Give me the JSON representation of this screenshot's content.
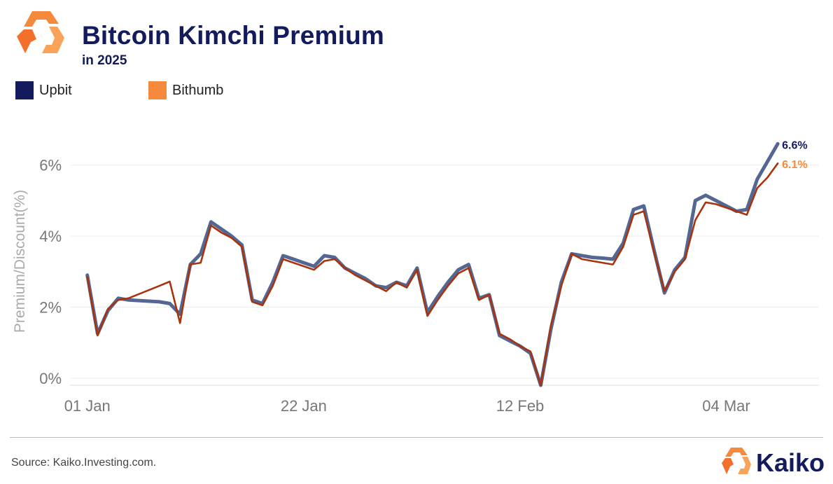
{
  "header": {
    "title": "Bitcoin Kimchi Premium",
    "subtitle": "in 2025"
  },
  "legend": [
    {
      "label": "Upbit",
      "color": "#131b5c"
    },
    {
      "label": "Bithumb",
      "color": "#f58a3c"
    }
  ],
  "footer": {
    "source": "Source: Kaiko.Investing.com.",
    "brand": "Kaiko"
  },
  "chart_data": {
    "type": "line",
    "title": "Bitcoin Kimchi Premium",
    "subtitle": "in 2025",
    "ylabel": "Premium/Discount(%)",
    "xlabel": "",
    "x_ticks": [
      "01 Jan",
      "22 Jan",
      "12 Feb",
      "04 Mar"
    ],
    "y_ticks": [
      "0%",
      "2%",
      "4%",
      "6%"
    ],
    "y_tick_values": [
      0,
      2,
      4,
      6
    ],
    "ylim": [
      -0.2,
      7.0
    ],
    "xlim": [
      "2024-12-31",
      "2025-03-13"
    ],
    "grid": "horizontal",
    "legend_position": "top-left",
    "series": [
      {
        "name": "Upbit",
        "color": "#4a5f8c",
        "end_label": "6.6%",
        "label_color": "#131b5c",
        "points": [
          [
            "2025-01-01",
            2.9
          ],
          [
            "2025-01-02",
            1.25
          ],
          [
            "2025-01-03",
            1.9
          ],
          [
            "2025-01-04",
            2.25
          ],
          [
            "2025-01-05",
            2.2
          ],
          [
            "2025-01-08",
            2.15
          ],
          [
            "2025-01-09",
            2.1
          ],
          [
            "2025-01-10",
            1.8
          ],
          [
            "2025-01-11",
            3.2
          ],
          [
            "2025-01-12",
            3.5
          ],
          [
            "2025-01-13",
            4.4
          ],
          [
            "2025-01-14",
            4.2
          ],
          [
            "2025-01-15",
            4.0
          ],
          [
            "2025-01-16",
            3.75
          ],
          [
            "2025-01-17",
            2.2
          ],
          [
            "2025-01-18",
            2.1
          ],
          [
            "2025-01-19",
            2.7
          ],
          [
            "2025-01-20",
            3.45
          ],
          [
            "2025-01-21",
            3.35
          ],
          [
            "2025-01-23",
            3.15
          ],
          [
            "2025-01-24",
            3.45
          ],
          [
            "2025-01-25",
            3.4
          ],
          [
            "2025-01-26",
            3.1
          ],
          [
            "2025-01-27",
            2.95
          ],
          [
            "2025-01-28",
            2.8
          ],
          [
            "2025-01-29",
            2.6
          ],
          [
            "2025-01-30",
            2.55
          ],
          [
            "2025-01-31",
            2.7
          ],
          [
            "2025-02-01",
            2.6
          ],
          [
            "2025-02-02",
            3.1
          ],
          [
            "2025-02-03",
            1.85
          ],
          [
            "2025-02-04",
            2.3
          ],
          [
            "2025-02-05",
            2.7
          ],
          [
            "2025-02-06",
            3.05
          ],
          [
            "2025-02-07",
            3.2
          ],
          [
            "2025-02-08",
            2.25
          ],
          [
            "2025-02-09",
            2.35
          ],
          [
            "2025-02-10",
            1.2
          ],
          [
            "2025-02-11",
            1.05
          ],
          [
            "2025-02-12",
            0.9
          ],
          [
            "2025-02-13",
            0.7
          ],
          [
            "2025-02-14",
            -0.2
          ],
          [
            "2025-02-15",
            1.4
          ],
          [
            "2025-02-16",
            2.7
          ],
          [
            "2025-02-17",
            3.5
          ],
          [
            "2025-02-18",
            3.45
          ],
          [
            "2025-02-19",
            3.4
          ],
          [
            "2025-02-20",
            3.38
          ],
          [
            "2025-02-21",
            3.35
          ],
          [
            "2025-02-22",
            3.8
          ],
          [
            "2025-02-23",
            4.75
          ],
          [
            "2025-02-24",
            4.85
          ],
          [
            "2025-02-25",
            3.6
          ],
          [
            "2025-02-26",
            2.4
          ],
          [
            "2025-02-27",
            3.05
          ],
          [
            "2025-02-28",
            3.4
          ],
          [
            "2025-03-01",
            5.0
          ],
          [
            "2025-03-02",
            5.15
          ],
          [
            "2025-03-03",
            5.0
          ],
          [
            "2025-03-04",
            4.85
          ],
          [
            "2025-03-05",
            4.7
          ],
          [
            "2025-03-06",
            4.75
          ],
          [
            "2025-03-07",
            5.6
          ],
          [
            "2025-03-08",
            6.1
          ],
          [
            "2025-03-09",
            6.6
          ]
        ]
      },
      {
        "name": "Bithumb",
        "color": "#a8340f",
        "end_label": "6.1%",
        "label_color": "#f58a3c",
        "points": [
          [
            "2025-01-01",
            2.85
          ],
          [
            "2025-01-02",
            1.2
          ],
          [
            "2025-01-03",
            1.95
          ],
          [
            "2025-01-04",
            2.2
          ],
          [
            "2025-01-05",
            2.25
          ],
          [
            "2025-01-08",
            2.6
          ],
          [
            "2025-01-09",
            2.72
          ],
          [
            "2025-01-10",
            1.55
          ],
          [
            "2025-01-11",
            3.2
          ],
          [
            "2025-01-12",
            3.25
          ],
          [
            "2025-01-13",
            4.3
          ],
          [
            "2025-01-14",
            4.1
          ],
          [
            "2025-01-15",
            3.95
          ],
          [
            "2025-01-16",
            3.7
          ],
          [
            "2025-01-17",
            2.15
          ],
          [
            "2025-01-18",
            2.05
          ],
          [
            "2025-01-19",
            2.6
          ],
          [
            "2025-01-20",
            3.35
          ],
          [
            "2025-01-21",
            3.25
          ],
          [
            "2025-01-23",
            3.05
          ],
          [
            "2025-01-24",
            3.3
          ],
          [
            "2025-01-25",
            3.35
          ],
          [
            "2025-01-26",
            3.1
          ],
          [
            "2025-01-27",
            2.9
          ],
          [
            "2025-01-28",
            2.75
          ],
          [
            "2025-01-29",
            2.6
          ],
          [
            "2025-01-30",
            2.45
          ],
          [
            "2025-01-31",
            2.7
          ],
          [
            "2025-02-01",
            2.55
          ],
          [
            "2025-02-02",
            3.05
          ],
          [
            "2025-02-03",
            1.75
          ],
          [
            "2025-02-04",
            2.2
          ],
          [
            "2025-02-05",
            2.6
          ],
          [
            "2025-02-06",
            2.95
          ],
          [
            "2025-02-07",
            3.1
          ],
          [
            "2025-02-08",
            2.2
          ],
          [
            "2025-02-09",
            2.35
          ],
          [
            "2025-02-10",
            1.25
          ],
          [
            "2025-02-11",
            1.1
          ],
          [
            "2025-02-12",
            0.9
          ],
          [
            "2025-02-13",
            0.75
          ],
          [
            "2025-02-14",
            -0.2
          ],
          [
            "2025-02-15",
            1.5
          ],
          [
            "2025-02-16",
            2.6
          ],
          [
            "2025-02-17",
            3.5
          ],
          [
            "2025-02-18",
            3.35
          ],
          [
            "2025-02-19",
            3.3
          ],
          [
            "2025-02-20",
            3.25
          ],
          [
            "2025-02-21",
            3.2
          ],
          [
            "2025-02-22",
            3.7
          ],
          [
            "2025-02-23",
            4.6
          ],
          [
            "2025-02-24",
            4.7
          ],
          [
            "2025-02-25",
            3.55
          ],
          [
            "2025-02-26",
            2.45
          ],
          [
            "2025-02-27",
            3.0
          ],
          [
            "2025-02-28",
            3.35
          ],
          [
            "2025-03-01",
            4.45
          ],
          [
            "2025-03-02",
            4.95
          ],
          [
            "2025-03-03",
            4.9
          ],
          [
            "2025-03-04",
            4.8
          ],
          [
            "2025-03-05",
            4.7
          ],
          [
            "2025-03-06",
            4.6
          ],
          [
            "2025-03-07",
            5.35
          ],
          [
            "2025-03-08",
            5.65
          ],
          [
            "2025-03-09",
            6.05
          ]
        ]
      }
    ]
  }
}
